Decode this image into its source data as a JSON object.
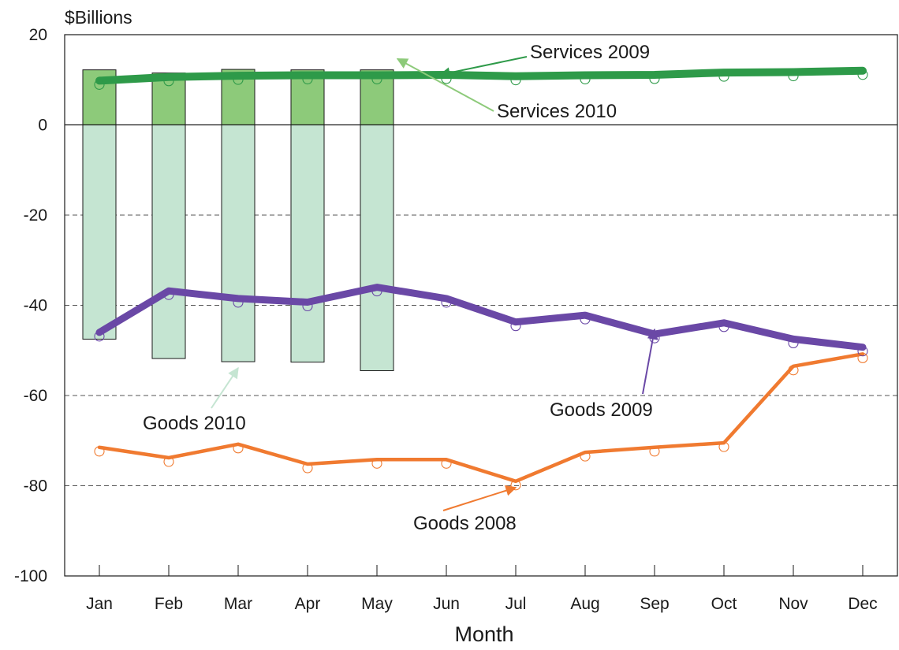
{
  "chart_data": {
    "type": "bar",
    "title": "",
    "ylabel": "$Billions",
    "xlabel": "Month",
    "ylim": [
      -100,
      20
    ],
    "yticks": [
      20,
      0,
      -20,
      -40,
      -60,
      -80,
      -100
    ],
    "grid": "dashed horizontal at -20, -40, -60, -80",
    "categories": [
      "Jan",
      "Feb",
      "Mar",
      "Apr",
      "May",
      "Jun",
      "Jul",
      "Aug",
      "Sep",
      "Oct",
      "Nov",
      "Dec"
    ],
    "series": [
      {
        "name": "Services 2010",
        "kind": "bar",
        "color": "#8dca7a",
        "values": [
          12.2,
          11.5,
          12.3,
          12.2,
          12.2,
          null,
          null,
          null,
          null,
          null,
          null,
          null
        ]
      },
      {
        "name": "Goods 2010",
        "kind": "bar",
        "color": "#c5e5d2",
        "values": [
          -47.5,
          -51.8,
          -52.5,
          -52.6,
          -54.5,
          null,
          null,
          null,
          null,
          null,
          null,
          null
        ]
      },
      {
        "name": "Services 2009",
        "kind": "line",
        "color": "#2e9a49",
        "values": [
          9.8,
          10.6,
          10.9,
          11.0,
          11.0,
          11.1,
          10.8,
          11.0,
          11.1,
          11.6,
          11.7,
          12.0
        ]
      },
      {
        "name": "Goods 2009",
        "kind": "line",
        "color": "#6a48a6",
        "values": [
          -46.0,
          -36.8,
          -38.5,
          -39.3,
          -36.0,
          -38.5,
          -43.7,
          -42.2,
          -46.4,
          -43.9,
          -47.5,
          -49.3
        ]
      },
      {
        "name": "Goods 2008",
        "kind": "line",
        "color": "#f07a30",
        "values": [
          -71.5,
          -73.8,
          -70.8,
          -75.2,
          -74.2,
          -74.2,
          -79.0,
          -72.6,
          -71.5,
          -70.5,
          -53.5,
          -50.8
        ]
      }
    ],
    "annotations": [
      {
        "text": "Services 2009",
        "target_series": "Services 2009",
        "target_month": "Jun"
      },
      {
        "text": "Services 2010",
        "target_series": "Services 2010",
        "target_month": "May"
      },
      {
        "text": "Goods 2010",
        "target_series": "Goods 2010",
        "target_month": "Mar"
      },
      {
        "text": "Goods 2009",
        "target_series": "Goods 2009",
        "target_month": "Sep"
      },
      {
        "text": "Goods 2008",
        "target_series": "Goods 2008",
        "target_month": "Jul"
      }
    ]
  }
}
